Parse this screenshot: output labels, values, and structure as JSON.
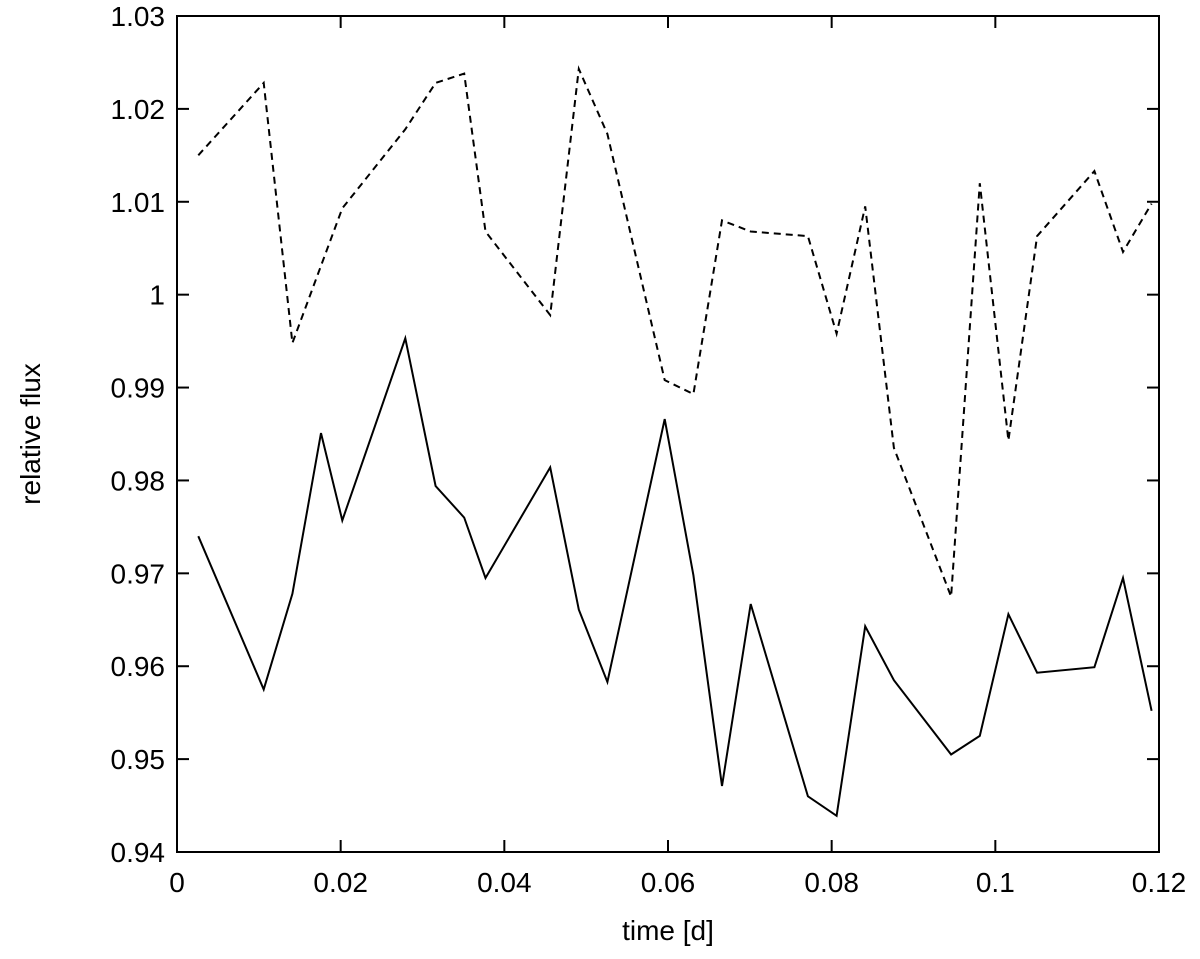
{
  "chart_data": {
    "type": "line",
    "title": "",
    "xlabel": "time [d]",
    "ylabel": "relative flux",
    "xlim": [
      0,
      0.12
    ],
    "ylim": [
      0.94,
      1.03
    ],
    "grid": false,
    "xticks": [
      0,
      0.02,
      0.04,
      0.06,
      0.08,
      0.1,
      0.12
    ],
    "xtick_labels": [
      "0",
      "0.02",
      "0.04",
      "0.06",
      "0.08",
      "0.1",
      "0.12"
    ],
    "yticks": [
      0.94,
      0.95,
      0.96,
      0.97,
      0.98,
      0.99,
      1.0,
      1.01,
      1.02,
      1.03
    ],
    "ytick_labels": [
      "0.94",
      "0.95",
      "0.96",
      "0.97",
      "0.98",
      "0.99",
      "1",
      "1.01",
      "1.02",
      "1.03"
    ],
    "series": [
      {
        "style": "dashed",
        "color": "#000000",
        "x": [
          0.0026,
          0.0106,
          0.0141,
          0.0202,
          0.0279,
          0.0316,
          0.0351,
          0.0377,
          0.0456,
          0.0491,
          0.0526,
          0.0596,
          0.0631,
          0.0666,
          0.0701,
          0.0771,
          0.0806,
          0.0841,
          0.0876,
          0.0946,
          0.0981,
          0.1016,
          0.1051,
          0.1121,
          0.1156,
          0.1191
        ],
        "y": [
          1.015,
          1.0228,
          0.9948,
          1.0093,
          1.0178,
          1.0228,
          1.0238,
          1.0068,
          0.9978,
          1.0243,
          1.0173,
          0.9908,
          0.9893,
          1.008,
          1.0068,
          1.0063,
          0.9958,
          1.0095,
          0.9835,
          0.9675,
          1.012,
          0.9843,
          1.0063,
          1.0133,
          1.0046,
          1.0098
        ]
      },
      {
        "style": "solid",
        "color": "#000000",
        "x": [
          0.0026,
          0.0106,
          0.0141,
          0.0176,
          0.0202,
          0.0279,
          0.0316,
          0.0351,
          0.0377,
          0.0456,
          0.0491,
          0.0526,
          0.0596,
          0.0631,
          0.0666,
          0.0701,
          0.0771,
          0.0806,
          0.0841,
          0.0876,
          0.0946,
          0.0981,
          0.1016,
          0.1051,
          0.1121,
          0.1156,
          0.1191
        ],
        "y": [
          0.974,
          0.9575,
          0.9678,
          0.9851,
          0.9757,
          0.9953,
          0.9794,
          0.976,
          0.9695,
          0.9814,
          0.9661,
          0.9583,
          0.9866,
          0.9698,
          0.9471,
          0.9667,
          0.946,
          0.9439,
          0.9643,
          0.9585,
          0.9505,
          0.9525,
          0.9656,
          0.9593,
          0.9599,
          0.9695,
          0.9552
        ]
      }
    ]
  }
}
